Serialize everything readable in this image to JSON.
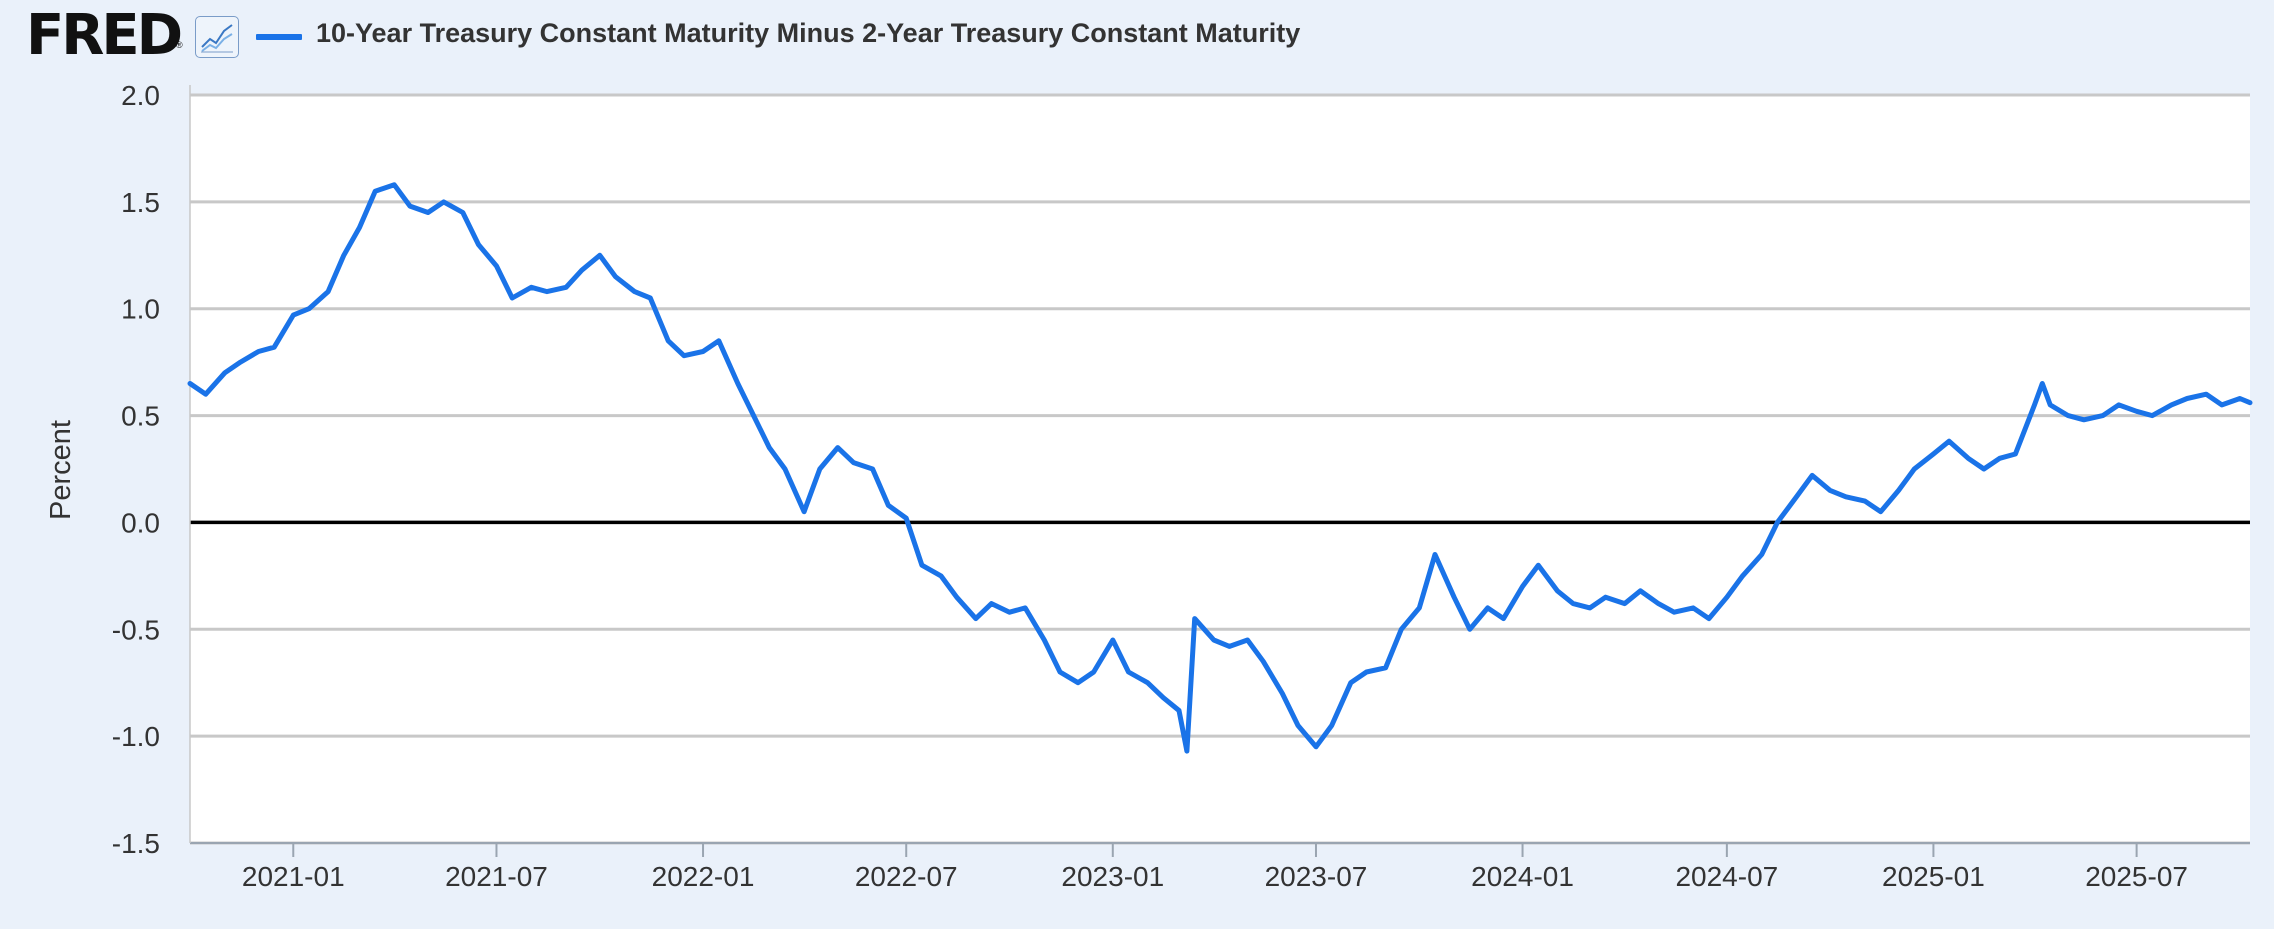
{
  "header": {
    "logo_text": "FRED",
    "logo_mark": "®",
    "chart_icon": "line-chart-icon",
    "legend_label": "10-Year Treasury Constant Maturity Minus 2-Year Treasury Constant Maturity"
  },
  "colors": {
    "series": "#1a73e8",
    "background": "#eaf1fa",
    "plot_background": "#ffffff",
    "grid": "#c8c8c8",
    "zero_line": "#000000"
  },
  "chart_data": {
    "type": "line",
    "title": "10-Year Treasury Constant Maturity Minus 2-Year Treasury Constant Maturity",
    "xlabel": "",
    "ylabel": "Percent",
    "ylim": [
      -1.5,
      2.0
    ],
    "yticks": [
      "2.0",
      "1.5",
      "1.0",
      "0.5",
      "0.0",
      "-0.5",
      "-1.0",
      "-1.5"
    ],
    "ytick_values": [
      2.0,
      1.5,
      1.0,
      0.5,
      0.0,
      -0.5,
      -1.0,
      -1.5
    ],
    "xlim": [
      "2020-10-01",
      "2025-10-10"
    ],
    "xticks": [
      "2021-01",
      "2021-07",
      "2022-01",
      "2022-07",
      "2023-01",
      "2023-07",
      "2024-01",
      "2024-07",
      "2025-01",
      "2025-07"
    ],
    "xtick_dates": [
      "2021-01-01",
      "2021-07-01",
      "2022-01-01",
      "2022-07-01",
      "2023-01-01",
      "2023-07-01",
      "2024-01-01",
      "2024-07-01",
      "2025-01-01",
      "2025-07-01"
    ],
    "grid": true,
    "legend": "top-left",
    "series": [
      {
        "name": "10-Year Treasury Constant Maturity Minus 2-Year Treasury Constant Maturity",
        "x": [
          "2020-10-01",
          "2020-10-15",
          "2020-11-01",
          "2020-11-15",
          "2020-12-01",
          "2020-12-15",
          "2021-01-01",
          "2021-01-15",
          "2021-02-01",
          "2021-02-15",
          "2021-03-01",
          "2021-03-15",
          "2021-04-01",
          "2021-04-15",
          "2021-05-01",
          "2021-05-15",
          "2021-06-01",
          "2021-06-15",
          "2021-07-01",
          "2021-07-15",
          "2021-08-01",
          "2021-08-15",
          "2021-09-01",
          "2021-09-15",
          "2021-10-01",
          "2021-10-15",
          "2021-11-01",
          "2021-11-15",
          "2021-12-01",
          "2021-12-15",
          "2022-01-01",
          "2022-01-15",
          "2022-02-01",
          "2022-02-15",
          "2022-03-01",
          "2022-03-15",
          "2022-04-01",
          "2022-04-15",
          "2022-05-01",
          "2022-05-15",
          "2022-06-01",
          "2022-06-15",
          "2022-07-01",
          "2022-07-15",
          "2022-08-01",
          "2022-08-15",
          "2022-09-01",
          "2022-09-15",
          "2022-10-01",
          "2022-10-15",
          "2022-11-01",
          "2022-11-15",
          "2022-12-01",
          "2022-12-15",
          "2023-01-01",
          "2023-01-15",
          "2023-02-01",
          "2023-02-15",
          "2023-03-01",
          "2023-03-08",
          "2023-03-15",
          "2023-04-01",
          "2023-04-15",
          "2023-05-01",
          "2023-05-15",
          "2023-06-01",
          "2023-06-15",
          "2023-07-01",
          "2023-07-15",
          "2023-08-01",
          "2023-08-15",
          "2023-09-01",
          "2023-09-15",
          "2023-10-01",
          "2023-10-15",
          "2023-11-01",
          "2023-11-15",
          "2023-12-01",
          "2023-12-15",
          "2024-01-01",
          "2024-01-15",
          "2024-02-01",
          "2024-02-15",
          "2024-03-01",
          "2024-03-15",
          "2024-04-01",
          "2024-04-15",
          "2024-05-01",
          "2024-05-15",
          "2024-06-01",
          "2024-06-15",
          "2024-07-01",
          "2024-07-15",
          "2024-08-01",
          "2024-08-15",
          "2024-09-01",
          "2024-09-15",
          "2024-10-01",
          "2024-10-15",
          "2024-11-01",
          "2024-11-15",
          "2024-12-01",
          "2024-12-15",
          "2025-01-01",
          "2025-01-15",
          "2025-02-01",
          "2025-02-15",
          "2025-03-01",
          "2025-03-15",
          "2025-04-01",
          "2025-04-08",
          "2025-04-15",
          "2025-05-01",
          "2025-05-15",
          "2025-06-01",
          "2025-06-15",
          "2025-07-01",
          "2025-07-15",
          "2025-08-01",
          "2025-08-15",
          "2025-09-01",
          "2025-09-15",
          "2025-10-01",
          "2025-10-10"
        ],
        "values": [
          0.65,
          0.6,
          0.7,
          0.75,
          0.8,
          0.82,
          0.97,
          1.0,
          1.08,
          1.25,
          1.38,
          1.55,
          1.58,
          1.48,
          1.45,
          1.5,
          1.45,
          1.3,
          1.2,
          1.05,
          1.1,
          1.08,
          1.1,
          1.18,
          1.25,
          1.15,
          1.08,
          1.05,
          0.85,
          0.78,
          0.8,
          0.85,
          0.65,
          0.5,
          0.35,
          0.25,
          0.05,
          0.25,
          0.35,
          0.28,
          0.25,
          0.08,
          0.02,
          -0.2,
          -0.25,
          -0.35,
          -0.45,
          -0.38,
          -0.42,
          -0.4,
          -0.55,
          -0.7,
          -0.75,
          -0.7,
          -0.55,
          -0.7,
          -0.75,
          -0.82,
          -0.88,
          -1.07,
          -0.45,
          -0.55,
          -0.58,
          -0.55,
          -0.65,
          -0.8,
          -0.95,
          -1.05,
          -0.95,
          -0.75,
          -0.7,
          -0.68,
          -0.5,
          -0.4,
          -0.15,
          -0.35,
          -0.5,
          -0.4,
          -0.45,
          -0.3,
          -0.2,
          -0.32,
          -0.38,
          -0.4,
          -0.35,
          -0.38,
          -0.32,
          -0.38,
          -0.42,
          -0.4,
          -0.45,
          -0.35,
          -0.25,
          -0.15,
          0.0,
          0.12,
          0.22,
          0.15,
          0.12,
          0.1,
          0.05,
          0.15,
          0.25,
          0.32,
          0.38,
          0.3,
          0.25,
          0.3,
          0.32,
          0.55,
          0.65,
          0.55,
          0.5,
          0.48,
          0.5,
          0.55,
          0.52,
          0.5,
          0.55,
          0.58,
          0.6,
          0.55,
          0.58,
          0.56
        ]
      }
    ]
  }
}
